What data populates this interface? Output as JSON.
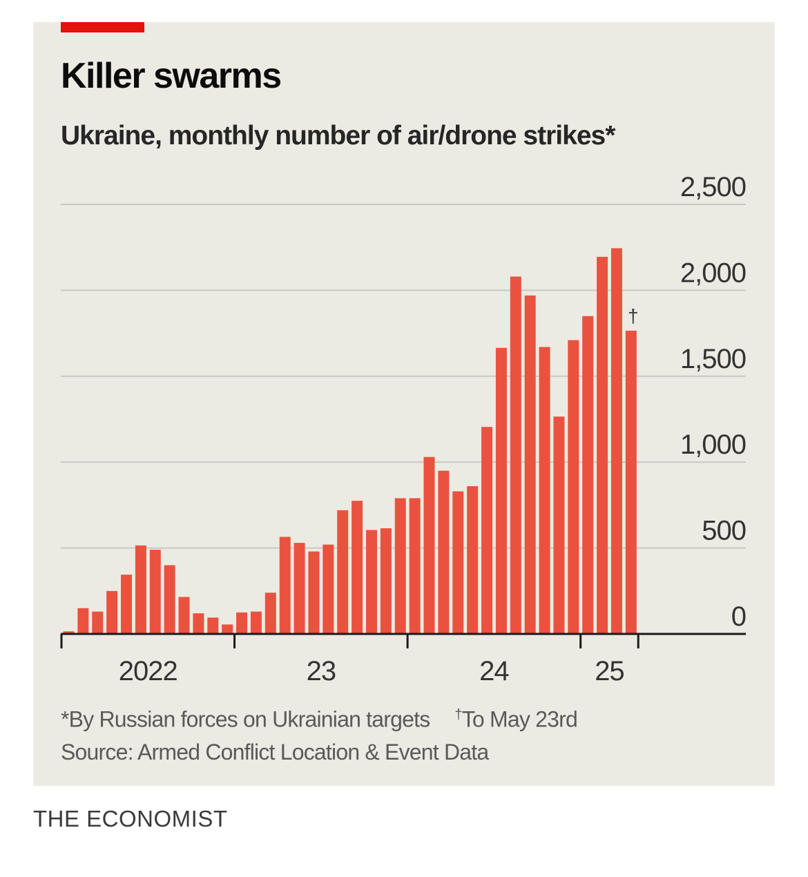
{
  "header": {
    "title": "Killer swarms",
    "subtitle": "Ukraine, monthly number of air/drone strikes*"
  },
  "footnotes": {
    "note1": "*By Russian forces on Ukrainian targets",
    "note2_mark": "†",
    "note2": "To May 23rd",
    "source": "Source: Armed Conflict Location & Event Data"
  },
  "brand": "THE ECONOMIST",
  "colors": {
    "bar": "#ea523f",
    "grid": "#c9c8c1",
    "accent": "#e3120b"
  },
  "chart_data": {
    "type": "bar",
    "title": "Killer swarms",
    "subtitle": "Ukraine, monthly number of air/drone strikes*",
    "ylim": [
      0,
      2500
    ],
    "y_ticks": [
      0,
      500,
      1000,
      1500,
      2000,
      2500
    ],
    "y_tick_labels": [
      "0",
      "500",
      "1,000",
      "1,500",
      "2,000",
      "2,500"
    ],
    "x_tick_labels": [
      "2022",
      "23",
      "24",
      "25"
    ],
    "y_axis_position": "right",
    "grid": true,
    "start_month": "2022-01",
    "series": [
      {
        "values": [
          15,
          150,
          130,
          250,
          345,
          515,
          490,
          400,
          215,
          120,
          95,
          55,
          125,
          130,
          240,
          565,
          530,
          480,
          520,
          720,
          775,
          605,
          615,
          790,
          790,
          1030,
          950,
          830,
          860,
          1205,
          1665,
          2080,
          1970,
          1670,
          1265,
          1710,
          1850,
          2195,
          2245,
          1765
        ]
      }
    ],
    "annotations": [
      {
        "category_index": 39,
        "text": "†"
      }
    ]
  }
}
